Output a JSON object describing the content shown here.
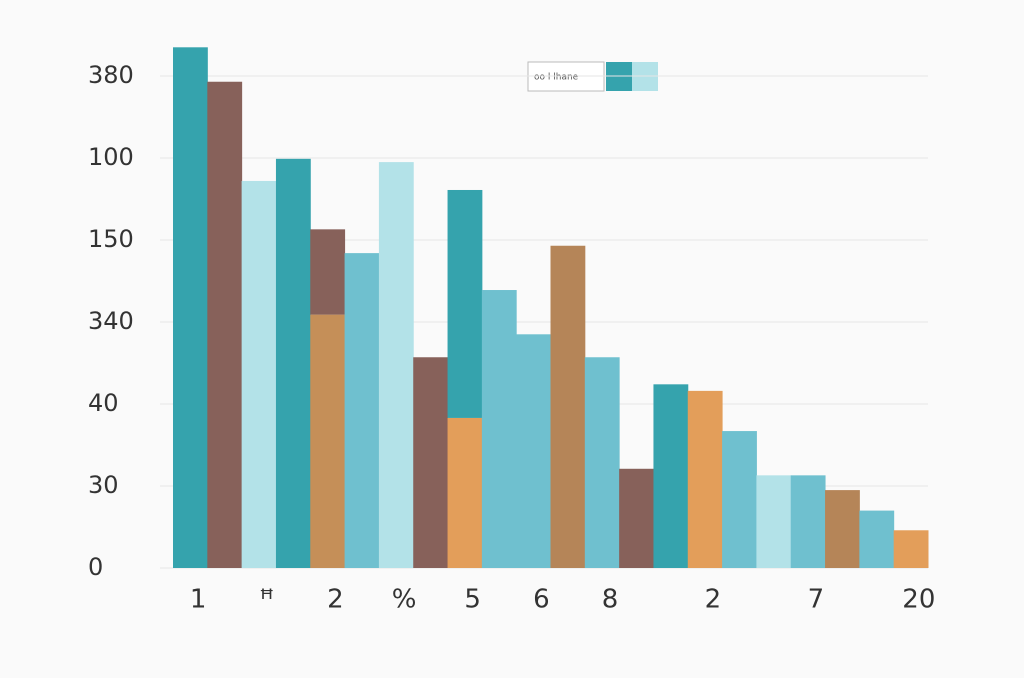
{
  "chart_data": {
    "type": "bar",
    "legend": "oo l lhane",
    "legend_colors": [
      "#35a3ad",
      "#b3e2e8"
    ],
    "ylim": [
      0,
      6.4
    ],
    "yticks": [
      {
        "value": 0,
        "label": "0"
      },
      {
        "value": 1,
        "label": "30"
      },
      {
        "value": 2,
        "label": "40"
      },
      {
        "value": 3,
        "label": "340"
      },
      {
        "value": 4,
        "label": "150"
      },
      {
        "value": 5,
        "label": "100"
      },
      {
        "value": 6,
        "label": "380"
      }
    ],
    "grid": true,
    "categories": [
      "1",
      null,
      "ꟸ",
      null,
      "2",
      null,
      "%",
      null,
      "5",
      null,
      "6",
      null,
      "8",
      null,
      null,
      "2",
      null,
      null,
      "7",
      null,
      null,
      "20"
    ],
    "bars": [
      [
        {
          "value": 6.35,
          "color": "#35a3ad"
        }
      ],
      [
        {
          "value": 5.93,
          "color": "#87615a"
        }
      ],
      [
        {
          "value": 4.72,
          "color": "#b3e2e8"
        }
      ],
      [
        {
          "value": 4.99,
          "color": "#35a3ad"
        }
      ],
      [
        {
          "value": 3.09,
          "color": "#c58f58"
        },
        {
          "value": 1.04,
          "color": "#87615a"
        }
      ],
      [
        {
          "value": 3.84,
          "color": "#6fc0cf"
        }
      ],
      [
        {
          "value": 4.95,
          "color": "#b3e2e8"
        }
      ],
      [
        {
          "value": 2.57,
          "color": "#87615a"
        }
      ],
      [
        {
          "value": 1.83,
          "color": "#e39e5a"
        },
        {
          "value": 2.78,
          "color": "#35a3ad"
        }
      ],
      [
        {
          "value": 3.39,
          "color": "#6fc0cf"
        }
      ],
      [
        {
          "value": 2.85,
          "color": "#6fc0cf"
        }
      ],
      [
        {
          "value": 3.93,
          "color": "#b58558"
        }
      ],
      [
        {
          "value": 2.57,
          "color": "#6fc0cf"
        }
      ],
      [
        {
          "value": 1.21,
          "color": "#87615a"
        }
      ],
      [
        {
          "value": 2.24,
          "color": "#35a3ad"
        }
      ],
      [
        {
          "value": 2.16,
          "color": "#e39e5a"
        }
      ],
      [
        {
          "value": 1.67,
          "color": "#6fc0cf"
        }
      ],
      [
        {
          "value": 1.13,
          "color": "#b3e2e8"
        }
      ],
      [
        {
          "value": 1.13,
          "color": "#6fc0cf"
        }
      ],
      [
        {
          "value": 0.95,
          "color": "#b58558"
        }
      ],
      [
        {
          "value": 0.7,
          "color": "#6fc0cf"
        }
      ],
      [
        {
          "value": 0.46,
          "color": "#e39e5a"
        }
      ]
    ]
  }
}
